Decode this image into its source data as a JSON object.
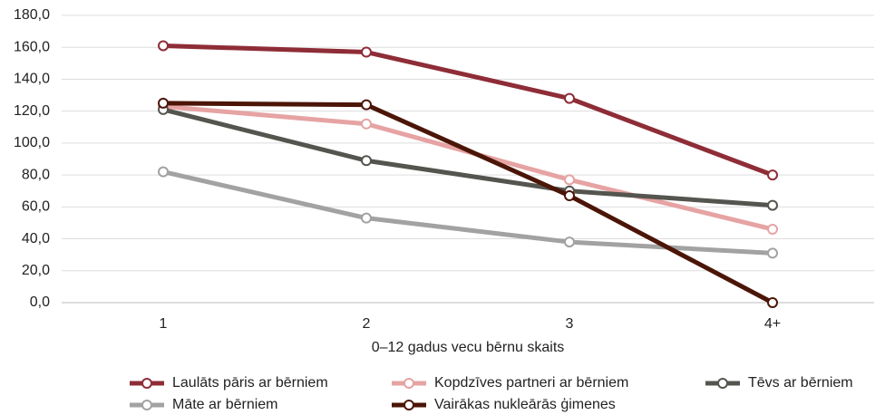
{
  "chart_data": {
    "type": "line",
    "x_label": "0–12 gadus vecu bērnu skaits",
    "categories": [
      "1",
      "2",
      "3",
      "4+"
    ],
    "series": [
      {
        "name": "Laulāts pāris ar bērniem",
        "color": "#8e2d37",
        "values": [
          161,
          157,
          128,
          80
        ]
      },
      {
        "name": "Kopdzīves partneri ar bērniem",
        "color": "#e6a3a3",
        "values": [
          123,
          112,
          77,
          46
        ]
      },
      {
        "name": "Tēvs ar bērniem",
        "color": "#55554f",
        "values": [
          121,
          89,
          70,
          61
        ]
      },
      {
        "name": "Māte ar bērniem",
        "color": "#a2a2a2",
        "values": [
          82,
          53,
          38,
          31
        ]
      },
      {
        "name": "Vairākas nukleārās ģimenes",
        "color": "#4b1507",
        "values": [
          125,
          124,
          67,
          0
        ]
      }
    ],
    "ylim": [
      0,
      180
    ],
    "yticks": [
      {
        "value": 0,
        "label": "0,0"
      },
      {
        "value": 20,
        "label": "20,0"
      },
      {
        "value": 40,
        "label": "40,0"
      },
      {
        "value": 60,
        "label": "60,0"
      },
      {
        "value": 80,
        "label": "80,0"
      },
      {
        "value": 100,
        "label": "100,0"
      },
      {
        "value": 120,
        "label": "120,0"
      },
      {
        "value": 140,
        "label": "140,0"
      },
      {
        "value": 160,
        "label": "160,0"
      },
      {
        "value": 180,
        "label": "180,0"
      }
    ],
    "grid": true
  }
}
